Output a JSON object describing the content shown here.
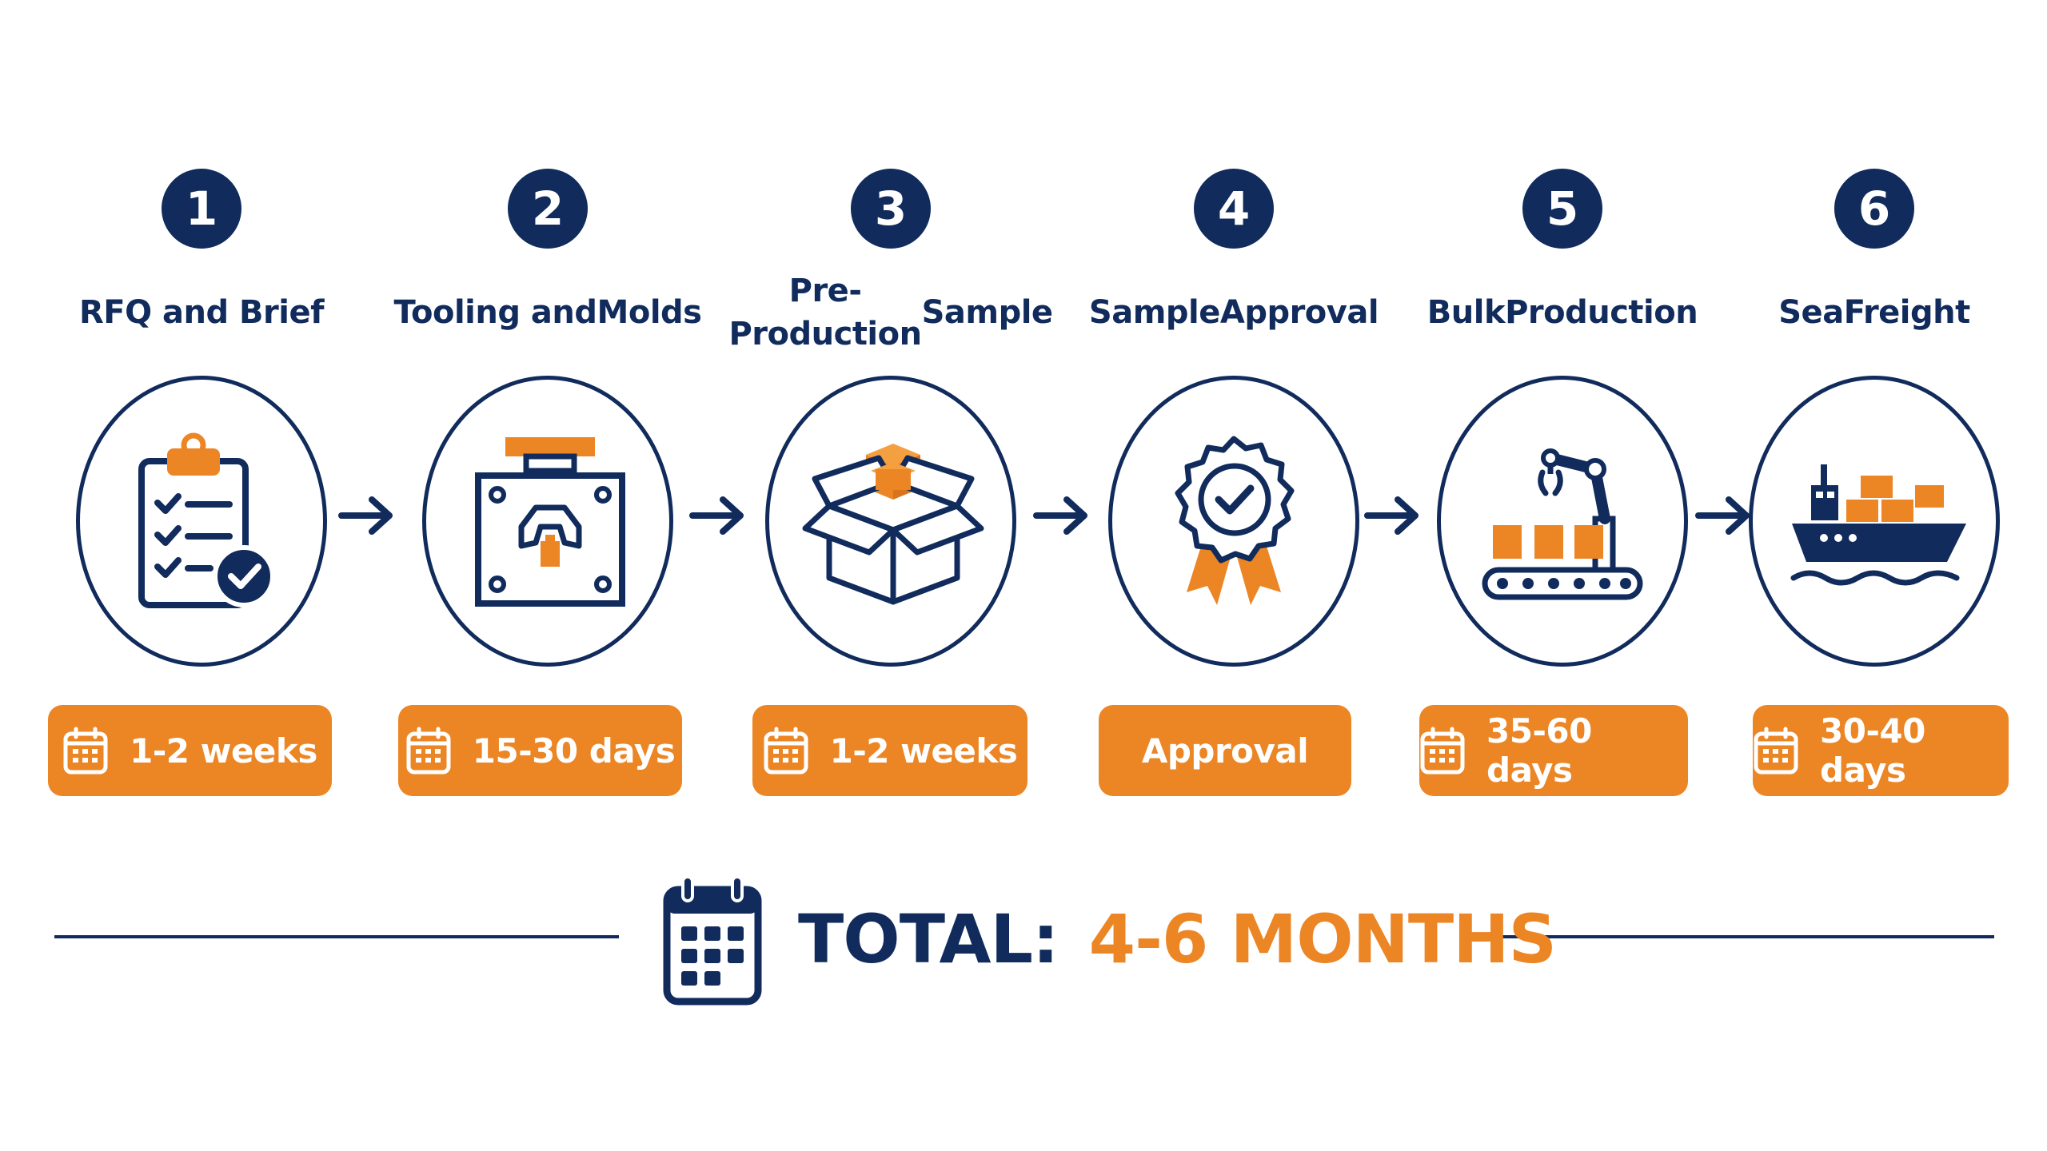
{
  "colors": {
    "navy": "#102b5c",
    "orange": "#ec8524",
    "background": "#ffffff"
  },
  "steps": [
    {
      "number": "1",
      "title_lines": [
        "RFQ and Brief",
        ""
      ],
      "duration": "1-2 weeks",
      "icon": "clipboard-check-icon"
    },
    {
      "number": "2",
      "title_lines": [
        "Tooling and",
        "Molds"
      ],
      "duration": "15-30 days",
      "icon": "mold-icon"
    },
    {
      "number": "3",
      "title_lines": [
        "Pre-Production",
        "Sample"
      ],
      "duration": "1-2 weeks",
      "icon": "open-box-icon"
    },
    {
      "number": "4",
      "title_lines": [
        "Sample",
        "Approval"
      ],
      "duration": "Approval",
      "icon": "award-badge-icon"
    },
    {
      "number": "5",
      "title_lines": [
        "Bulk",
        "Production"
      ],
      "duration": "35-60 days",
      "icon": "conveyor-robot-icon"
    },
    {
      "number": "6",
      "title_lines": [
        "Sea",
        "Freight"
      ],
      "duration": "30-40 days",
      "icon": "cargo-ship-icon"
    }
  ],
  "total": {
    "label": "TOTAL:",
    "value": "4-6 MONTHS",
    "icon": "calendar-icon"
  }
}
